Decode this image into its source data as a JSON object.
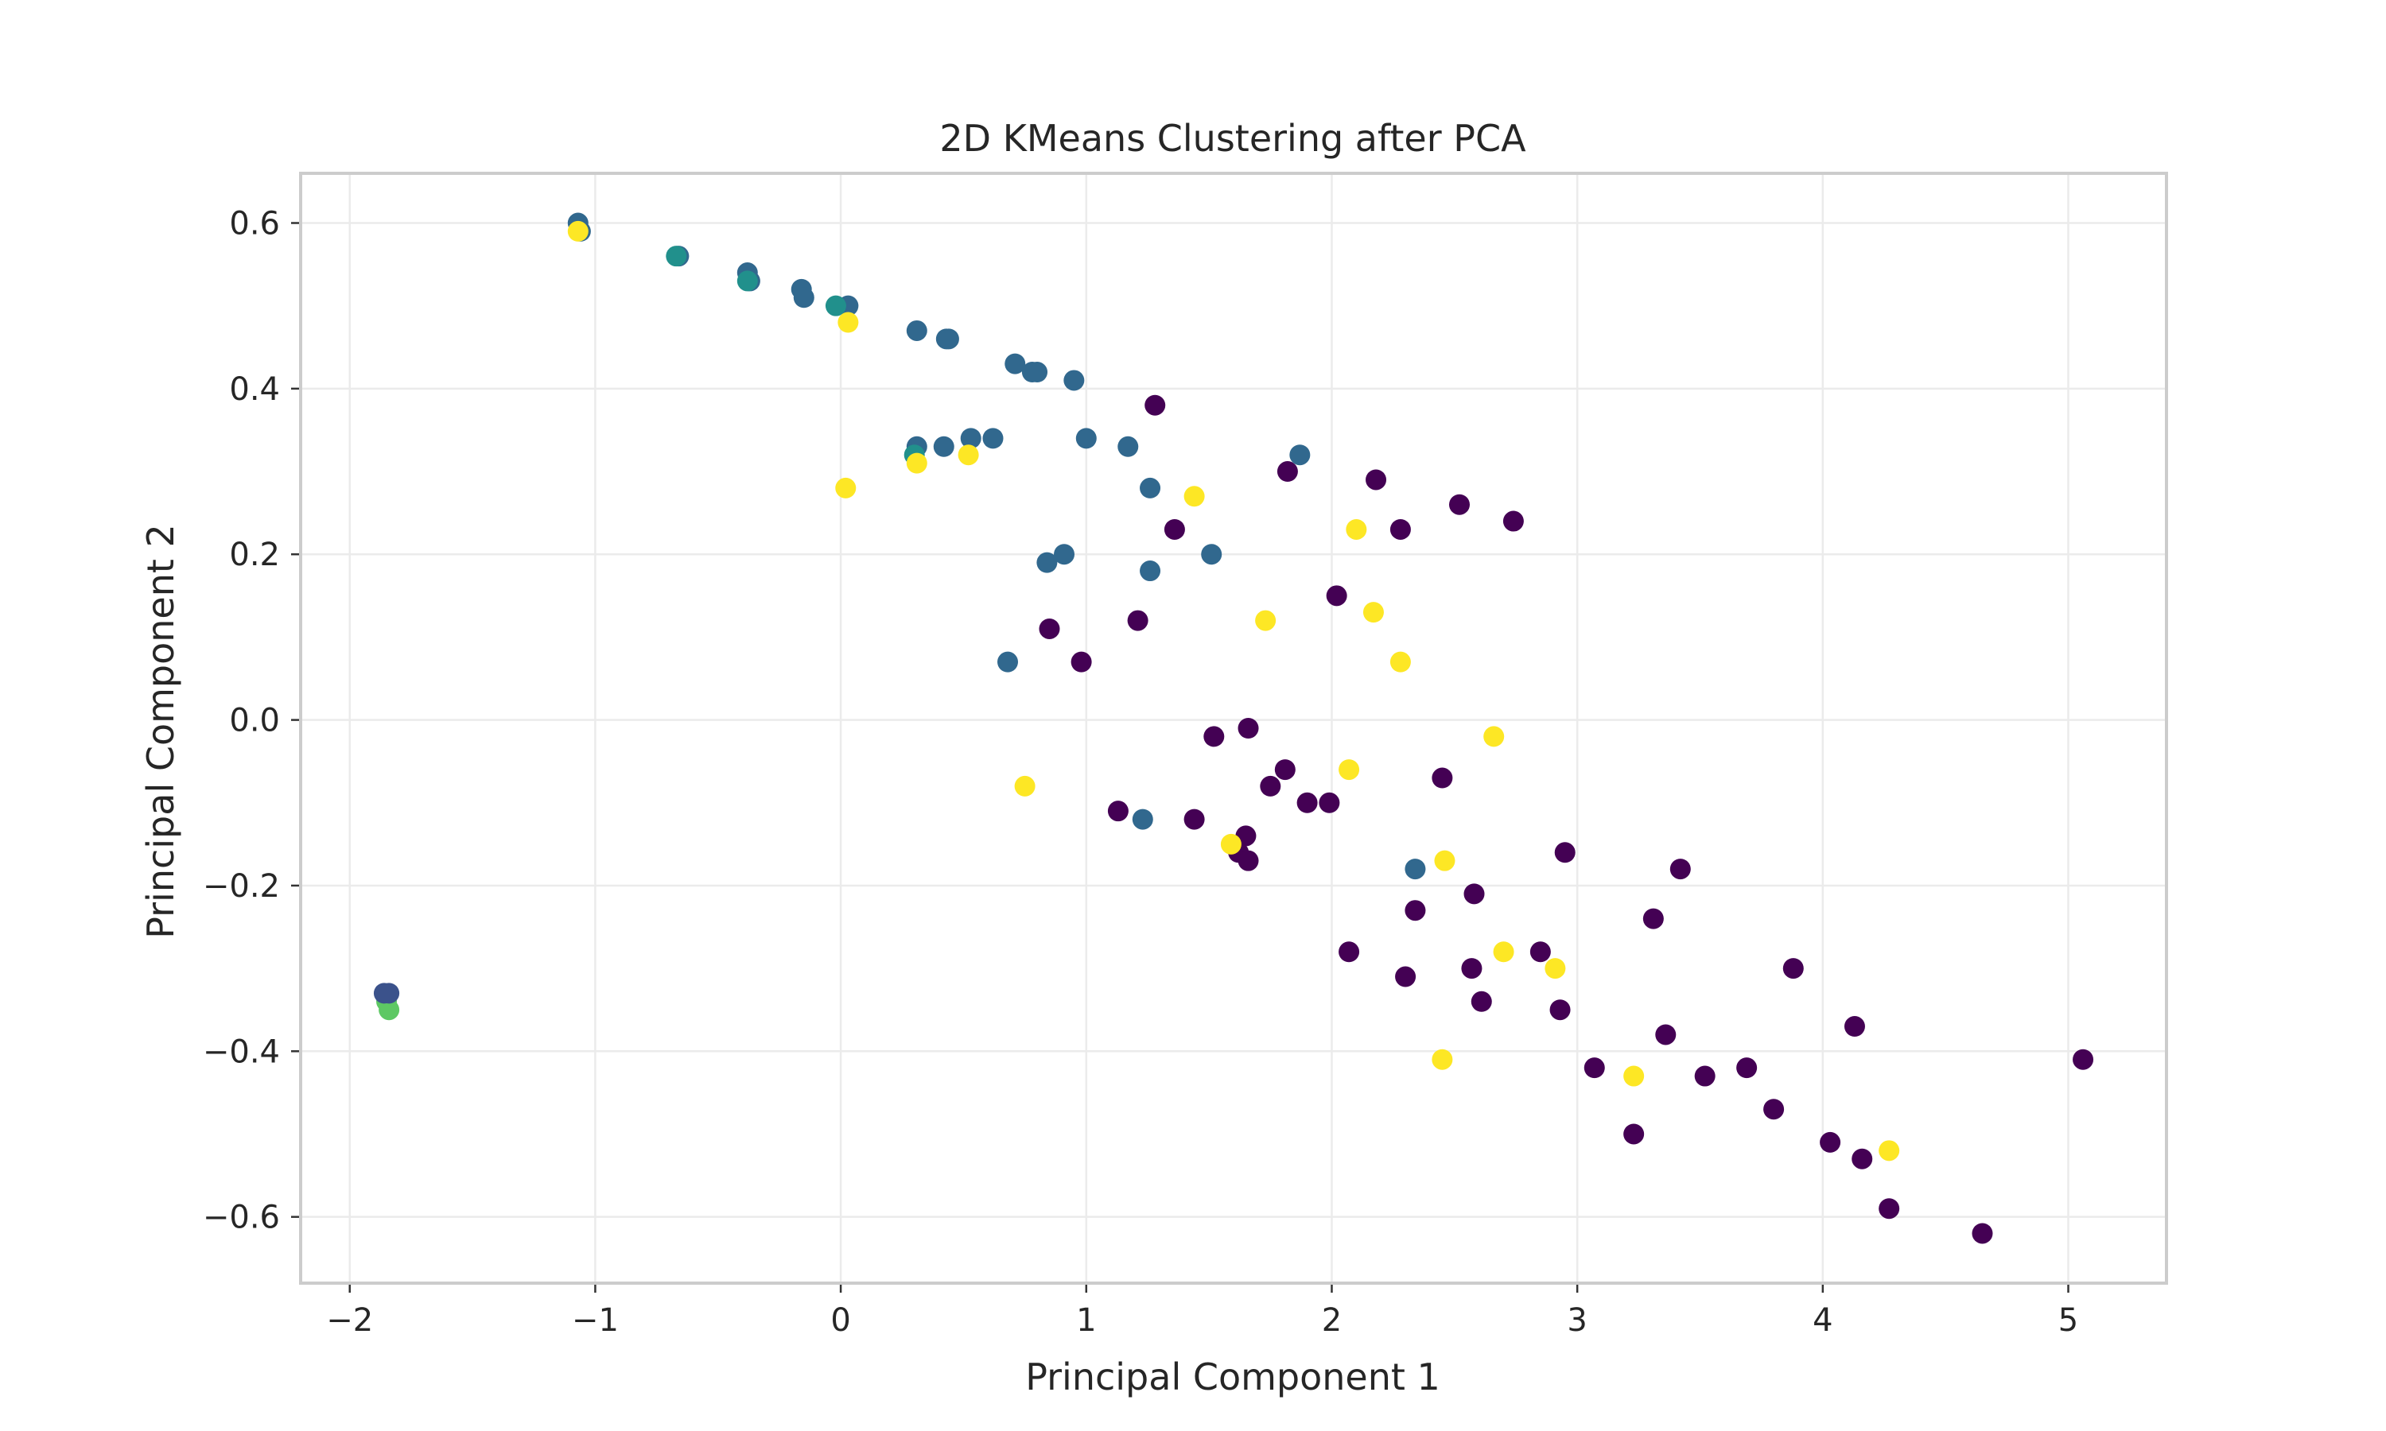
{
  "chart_data": {
    "type": "scatter",
    "title": "2D KMeans Clustering after PCA",
    "xlabel": "Principal Component 1",
    "ylabel": "Principal Component 2",
    "xlim": [
      -2.2,
      5.4
    ],
    "ylim": [
      -0.68,
      0.66
    ],
    "xticks": [
      -2,
      -1,
      0,
      1,
      2,
      3,
      4,
      5
    ],
    "xtick_labels": [
      "−2",
      "−1",
      "0",
      "1",
      "2",
      "3",
      "4",
      "5"
    ],
    "yticks": [
      -0.6,
      -0.4,
      -0.2,
      0.0,
      0.2,
      0.4,
      0.6
    ],
    "ytick_labels": [
      "−0.6",
      "−0.4",
      "−0.2",
      "0.0",
      "0.2",
      "0.4",
      "0.6"
    ],
    "grid": true,
    "legend": "none",
    "colormap": "viridis",
    "cluster_colors": [
      "#440154",
      "#3b528b",
      "#21908c",
      "#31688e",
      "#5dc863",
      "#fde725"
    ],
    "series": [
      {
        "cluster": 0,
        "color": "#440154",
        "points": [
          [
            1.28,
            0.38
          ],
          [
            1.82,
            0.3
          ],
          [
            2.18,
            0.29
          ],
          [
            2.52,
            0.26
          ],
          [
            2.74,
            0.24
          ],
          [
            2.28,
            0.23
          ],
          [
            1.36,
            0.23
          ],
          [
            2.02,
            0.15
          ],
          [
            0.85,
            0.11
          ],
          [
            1.21,
            0.12
          ],
          [
            0.98,
            0.07
          ],
          [
            1.52,
            -0.02
          ],
          [
            1.66,
            -0.01
          ],
          [
            1.81,
            -0.06
          ],
          [
            1.75,
            -0.08
          ],
          [
            1.9,
            -0.1
          ],
          [
            1.99,
            -0.1
          ],
          [
            2.45,
            -0.07
          ],
          [
            1.13,
            -0.11
          ],
          [
            1.44,
            -0.12
          ],
          [
            1.65,
            -0.14
          ],
          [
            1.62,
            -0.16
          ],
          [
            1.66,
            -0.17
          ],
          [
            2.95,
            -0.16
          ],
          [
            3.42,
            -0.18
          ],
          [
            2.58,
            -0.21
          ],
          [
            2.34,
            -0.23
          ],
          [
            3.31,
            -0.24
          ],
          [
            2.07,
            -0.28
          ],
          [
            2.3,
            -0.31
          ],
          [
            2.57,
            -0.3
          ],
          [
            2.85,
            -0.28
          ],
          [
            3.88,
            -0.3
          ],
          [
            2.61,
            -0.34
          ],
          [
            2.93,
            -0.35
          ],
          [
            3.36,
            -0.38
          ],
          [
            4.13,
            -0.37
          ],
          [
            3.07,
            -0.42
          ],
          [
            3.52,
            -0.43
          ],
          [
            3.69,
            -0.42
          ],
          [
            3.23,
            -0.5
          ],
          [
            3.8,
            -0.47
          ],
          [
            4.03,
            -0.51
          ],
          [
            4.16,
            -0.53
          ],
          [
            5.06,
            -0.41
          ],
          [
            4.27,
            -0.59
          ],
          [
            4.65,
            -0.62
          ]
        ]
      },
      {
        "cluster": 1,
        "color": "#3b528b",
        "points": [
          [
            -1.86,
            -0.33
          ],
          [
            -1.84,
            -0.33
          ]
        ]
      },
      {
        "cluster": 2,
        "color": "#21908c",
        "points": [
          [
            -0.02,
            0.5
          ],
          [
            0.3,
            0.32
          ],
          [
            -0.67,
            0.56
          ],
          [
            -0.38,
            0.53
          ]
        ]
      },
      {
        "cluster": 3,
        "color": "#31688e",
        "points": [
          [
            -1.07,
            0.6
          ],
          [
            -1.06,
            0.59
          ],
          [
            -0.66,
            0.56
          ],
          [
            -0.38,
            0.54
          ],
          [
            -0.37,
            0.53
          ],
          [
            -0.16,
            0.52
          ],
          [
            -0.15,
            0.51
          ],
          [
            0.03,
            0.5
          ],
          [
            0.31,
            0.47
          ],
          [
            0.43,
            0.46
          ],
          [
            0.44,
            0.46
          ],
          [
            0.71,
            0.43
          ],
          [
            0.78,
            0.42
          ],
          [
            0.8,
            0.42
          ],
          [
            0.95,
            0.41
          ],
          [
            1.0,
            0.34
          ],
          [
            1.17,
            0.33
          ],
          [
            0.31,
            0.33
          ],
          [
            0.42,
            0.33
          ],
          [
            0.53,
            0.34
          ],
          [
            0.62,
            0.34
          ],
          [
            1.87,
            0.32
          ],
          [
            1.26,
            0.28
          ],
          [
            1.51,
            0.2
          ],
          [
            0.91,
            0.2
          ],
          [
            0.84,
            0.19
          ],
          [
            1.26,
            0.18
          ],
          [
            0.68,
            0.07
          ],
          [
            1.23,
            -0.12
          ],
          [
            2.34,
            -0.18
          ]
        ]
      },
      {
        "cluster": 4,
        "color": "#5dc863",
        "points": [
          [
            -1.85,
            -0.34
          ],
          [
            -1.84,
            -0.35
          ]
        ]
      },
      {
        "cluster": 5,
        "color": "#fde725",
        "points": [
          [
            -1.07,
            0.59
          ],
          [
            0.03,
            0.48
          ],
          [
            0.02,
            0.28
          ],
          [
            0.31,
            0.31
          ],
          [
            0.52,
            0.32
          ],
          [
            1.44,
            0.27
          ],
          [
            2.1,
            0.23
          ],
          [
            2.17,
            0.13
          ],
          [
            1.73,
            0.12
          ],
          [
            2.28,
            0.07
          ],
          [
            2.66,
            -0.02
          ],
          [
            2.07,
            -0.06
          ],
          [
            0.75,
            -0.08
          ],
          [
            1.59,
            -0.15
          ],
          [
            2.46,
            -0.17
          ],
          [
            2.7,
            -0.28
          ],
          [
            2.91,
            -0.3
          ],
          [
            2.45,
            -0.41
          ],
          [
            3.23,
            -0.43
          ],
          [
            4.27,
            -0.52
          ]
        ]
      }
    ]
  }
}
